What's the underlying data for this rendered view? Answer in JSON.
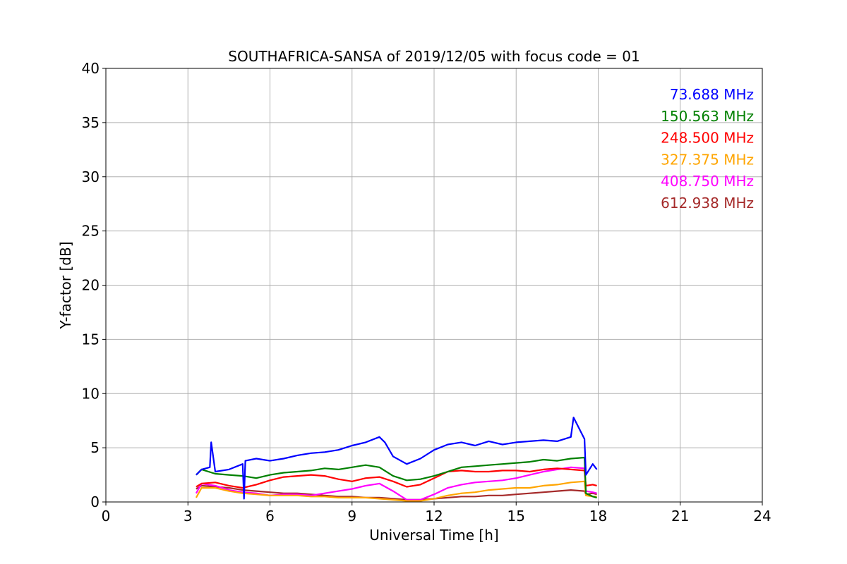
{
  "chart_data": {
    "type": "line",
    "title": "SOUTHAFRICA-SANSA of 2019/12/05 with focus code = 01",
    "xlabel": "Universal Time [h]",
    "ylabel": "Y-factor [dB]",
    "xlim": [
      0,
      24
    ],
    "ylim": [
      0,
      40
    ],
    "xticks": [
      0,
      3,
      6,
      9,
      12,
      15,
      18,
      21,
      24
    ],
    "yticks": [
      0,
      5,
      10,
      15,
      20,
      25,
      30,
      35,
      40
    ],
    "grid": true,
    "legend_placement": "top-right",
    "series": [
      {
        "name": "73.688 MHz",
        "color": "#0000ff",
        "x": [
          3.3,
          3.5,
          3.8,
          3.85,
          4.0,
          4.5,
          5.0,
          5.05,
          5.1,
          5.5,
          6.0,
          6.5,
          7.0,
          7.5,
          8.0,
          8.5,
          9.0,
          9.5,
          10.0,
          10.2,
          10.5,
          11.0,
          11.5,
          12.0,
          12.5,
          13.0,
          13.5,
          14.0,
          14.5,
          15.0,
          15.5,
          16.0,
          16.5,
          17.0,
          17.1,
          17.5,
          17.55,
          17.8,
          17.95
        ],
        "y": [
          2.5,
          3.0,
          3.2,
          5.5,
          2.8,
          3.0,
          3.5,
          0.3,
          3.8,
          4.0,
          3.8,
          4.0,
          4.3,
          4.5,
          4.6,
          4.8,
          5.2,
          5.5,
          6.0,
          5.5,
          4.2,
          3.5,
          4.0,
          4.8,
          5.3,
          5.5,
          5.2,
          5.6,
          5.3,
          5.5,
          5.6,
          5.7,
          5.6,
          6.0,
          7.8,
          5.8,
          2.5,
          3.5,
          3.0
        ]
      },
      {
        "name": "150.563 MHz",
        "color": "#008000",
        "x": [
          3.3,
          3.5,
          4.0,
          4.5,
          5.0,
          5.5,
          6.0,
          6.5,
          7.0,
          7.5,
          8.0,
          8.5,
          9.0,
          9.5,
          10.0,
          10.5,
          11.0,
          11.5,
          12.0,
          12.5,
          13.0,
          13.5,
          14.0,
          14.5,
          15.0,
          15.5,
          16.0,
          16.5,
          17.0,
          17.5,
          17.55,
          17.8,
          17.95
        ],
        "y": [
          2.5,
          3.0,
          2.6,
          2.5,
          2.4,
          2.2,
          2.5,
          2.7,
          2.8,
          2.9,
          3.1,
          3.0,
          3.2,
          3.4,
          3.2,
          2.4,
          2.0,
          2.1,
          2.4,
          2.8,
          3.2,
          3.3,
          3.4,
          3.5,
          3.6,
          3.7,
          3.9,
          3.8,
          4.0,
          4.1,
          0.8,
          0.5,
          0.4
        ]
      },
      {
        "name": "248.500 MHz",
        "color": "#ff0000",
        "x": [
          3.3,
          3.5,
          4.0,
          4.5,
          5.0,
          5.5,
          6.0,
          6.5,
          7.0,
          7.5,
          8.0,
          8.5,
          9.0,
          9.5,
          10.0,
          10.5,
          11.0,
          11.5,
          12.0,
          12.5,
          13.0,
          13.5,
          14.0,
          14.5,
          15.0,
          15.5,
          16.0,
          16.5,
          17.0,
          17.5,
          17.55,
          17.8,
          17.95
        ],
        "y": [
          1.4,
          1.7,
          1.8,
          1.5,
          1.3,
          1.6,
          2.0,
          2.3,
          2.4,
          2.5,
          2.4,
          2.1,
          1.9,
          2.2,
          2.3,
          1.9,
          1.4,
          1.6,
          2.2,
          2.8,
          2.9,
          2.8,
          2.8,
          2.9,
          2.9,
          2.8,
          3.0,
          3.1,
          3.0,
          2.9,
          1.5,
          1.6,
          1.5
        ]
      },
      {
        "name": "327.375 MHz",
        "color": "#ffa500",
        "x": [
          3.3,
          3.5,
          4.0,
          4.5,
          5.0,
          5.5,
          6.0,
          6.5,
          7.0,
          7.5,
          8.0,
          8.5,
          9.0,
          9.5,
          10.0,
          10.5,
          11.0,
          11.5,
          12.0,
          12.5,
          13.0,
          13.5,
          14.0,
          14.5,
          15.0,
          15.5,
          16.0,
          16.5,
          17.0,
          17.5,
          17.55,
          17.8,
          17.95
        ],
        "y": [
          0.4,
          1.3,
          1.3,
          1.0,
          0.8,
          0.7,
          0.6,
          0.6,
          0.6,
          0.5,
          0.5,
          0.4,
          0.4,
          0.4,
          0.3,
          0.2,
          0.1,
          0.1,
          0.3,
          0.6,
          0.8,
          0.9,
          1.1,
          1.2,
          1.3,
          1.3,
          1.5,
          1.6,
          1.8,
          1.9,
          0.6,
          0.5,
          0.5
        ]
      },
      {
        "name": "408.750 MHz",
        "color": "#ff00ff",
        "x": [
          3.3,
          3.5,
          4.0,
          4.5,
          5.0,
          5.5,
          6.0,
          6.5,
          7.0,
          7.5,
          8.0,
          8.5,
          9.0,
          9.5,
          10.0,
          10.5,
          11.0,
          11.5,
          12.0,
          12.5,
          13.0,
          13.5,
          14.0,
          14.5,
          15.0,
          15.5,
          16.0,
          16.5,
          17.0,
          17.5,
          17.55,
          17.8,
          17.95
        ],
        "y": [
          0.8,
          1.7,
          1.5,
          1.1,
          0.9,
          0.8,
          0.6,
          0.7,
          0.7,
          0.6,
          0.8,
          1.0,
          1.2,
          1.5,
          1.7,
          1.0,
          0.2,
          0.2,
          0.7,
          1.3,
          1.6,
          1.8,
          1.9,
          2.0,
          2.2,
          2.5,
          2.8,
          3.0,
          3.2,
          3.1,
          1.0,
          0.9,
          0.8
        ]
      },
      {
        "name": "612.938 MHz",
        "color": "#a52a2a",
        "x": [
          3.3,
          3.5,
          4.0,
          4.5,
          5.0,
          5.5,
          6.0,
          6.5,
          7.0,
          7.5,
          8.0,
          8.5,
          9.0,
          9.5,
          10.0,
          10.5,
          11.0,
          11.5,
          12.0,
          12.5,
          13.0,
          13.5,
          14.0,
          14.5,
          15.0,
          15.5,
          16.0,
          16.5,
          17.0,
          17.5,
          17.55,
          17.8,
          17.95
        ],
        "y": [
          1.2,
          1.5,
          1.4,
          1.3,
          1.1,
          1.0,
          0.9,
          0.8,
          0.8,
          0.7,
          0.6,
          0.5,
          0.5,
          0.4,
          0.4,
          0.3,
          0.2,
          0.2,
          0.3,
          0.4,
          0.5,
          0.5,
          0.6,
          0.6,
          0.7,
          0.8,
          0.9,
          1.0,
          1.1,
          1.0,
          0.7,
          0.8,
          0.7
        ]
      }
    ]
  }
}
